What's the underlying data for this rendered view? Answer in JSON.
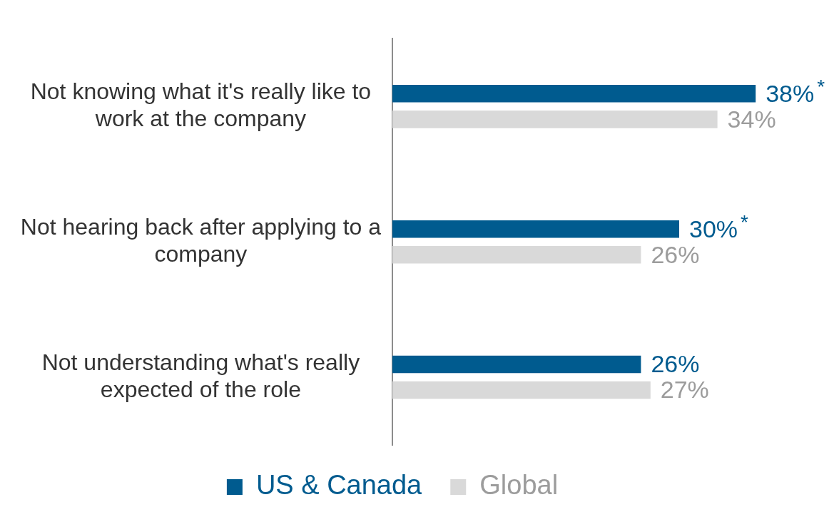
{
  "chart_data": {
    "type": "bar",
    "orientation": "horizontal",
    "categories": [
      "Not knowing what it's really like to work at the company",
      "Not hearing back after applying to a company",
      "Not understanding what's really expected of the role"
    ],
    "series": [
      {
        "name": "US & Canada",
        "color": "#005b8f",
        "values": [
          38,
          30,
          26
        ],
        "value_labels": [
          "38%*",
          "30%*",
          "26%"
        ]
      },
      {
        "name": "Global",
        "color": "#d9d9d9",
        "values": [
          34,
          26,
          27
        ],
        "value_labels": [
          "34%",
          "26%",
          "27%"
        ]
      }
    ],
    "legend": "bottom",
    "grid": false
  }
}
